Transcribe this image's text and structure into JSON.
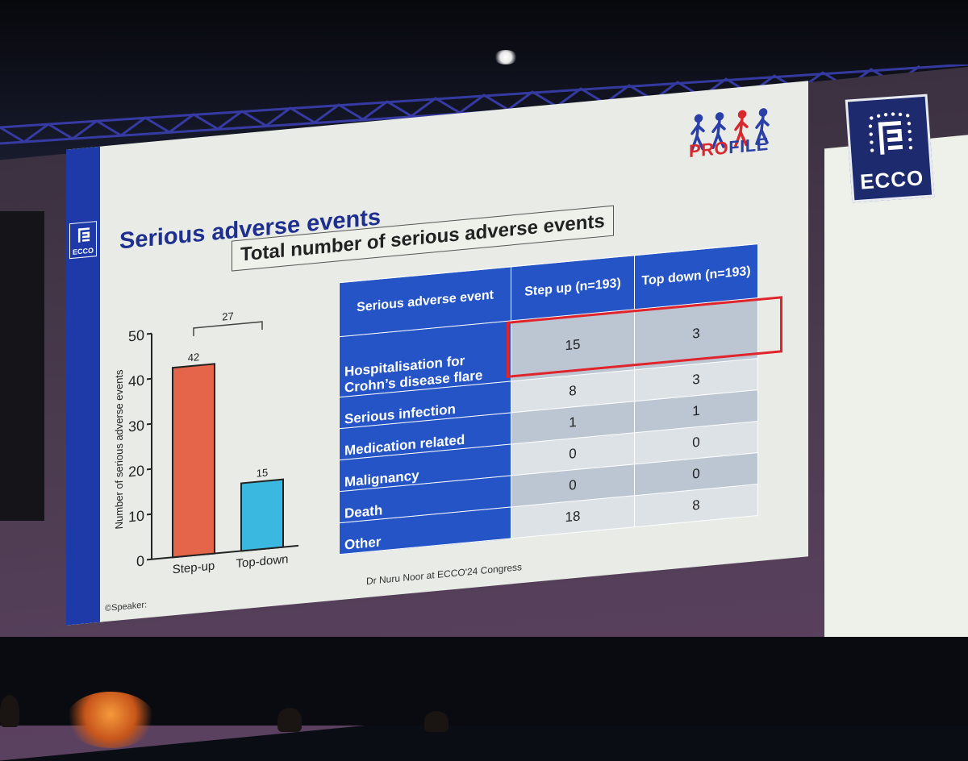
{
  "slide": {
    "title": "Serious adverse events",
    "box_title": "Total number of serious adverse events",
    "profile_logo_text": "PROFILE",
    "ecco_logo_text": "ECCO",
    "credit": "©Speaker:",
    "footer_note": "Dr Nuru Noor  at ECCO'24 Congress"
  },
  "colors": {
    "slide_blue": "#1d3aa8",
    "table_header": "#2454c6",
    "bar_step_up": "#e4654a",
    "bar_top_down": "#3bb8e0",
    "highlight": "#e0242b",
    "profile_red": "#d6282e",
    "profile_blue": "#2a3fa8"
  },
  "chart_data": {
    "type": "bar",
    "categories": [
      "Step-up",
      "Top-down"
    ],
    "values": [
      42,
      15
    ],
    "data_labels": [
      "42",
      "15"
    ],
    "ylabel": "Number of serious adverse events",
    "xlabel": "",
    "ylim": [
      0,
      50
    ],
    "yticks": [
      0,
      10,
      20,
      30,
      40,
      50
    ],
    "grid": false,
    "bracket_annotation": "27"
  },
  "table": {
    "headers": [
      "Serious adverse event",
      "Step up (n=193)",
      "Top down (n=193)"
    ],
    "rows": [
      {
        "event": "Hospitalisation for Crohn’s disease flare",
        "step_up": "15",
        "top_down": "3"
      },
      {
        "event": "Serious infection",
        "step_up": "8",
        "top_down": "3"
      },
      {
        "event": "Medication related",
        "step_up": "1",
        "top_down": "1"
      },
      {
        "event": "Malignancy",
        "step_up": "0",
        "top_down": "0"
      },
      {
        "event": "Death",
        "step_up": "0",
        "top_down": "0"
      },
      {
        "event": "Other",
        "step_up": "18",
        "top_down": "8"
      }
    ],
    "highlighted_row": "Hospitalisation for Crohn’s disease flare"
  },
  "icons": [
    "ecco-logo-icon",
    "profile-walkers-icon",
    "spotlight-icon"
  ]
}
